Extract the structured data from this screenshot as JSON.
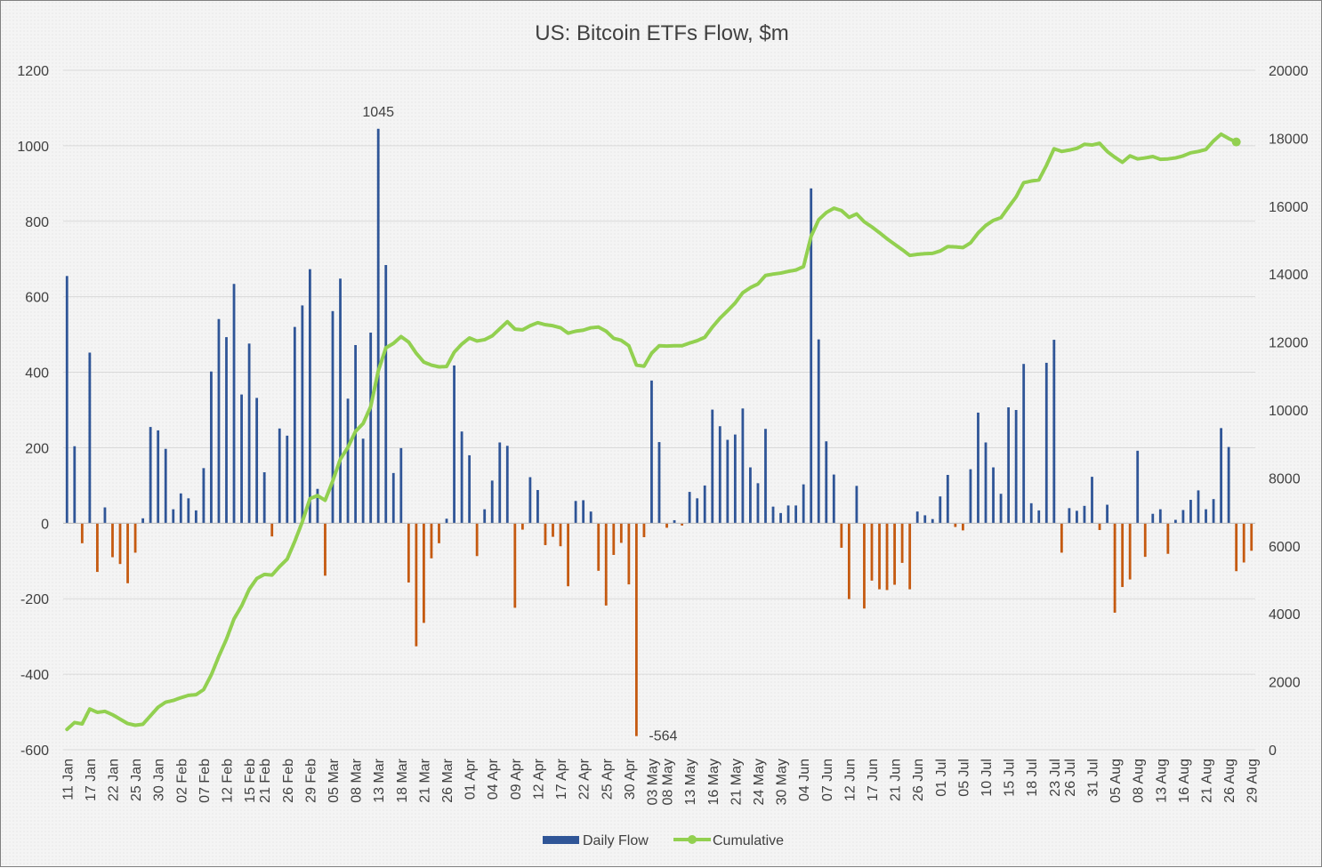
{
  "chart_data": {
    "type": "bar",
    "title": "US: Bitcoin ETFs Flow, $m",
    "xlabel": "",
    "ylabel": "",
    "ylim": [
      -600,
      1200
    ],
    "y2lim": [
      0,
      20000
    ],
    "yticks": [
      -600,
      -400,
      -200,
      0,
      200,
      400,
      600,
      800,
      1000,
      1200
    ],
    "y2ticks": [
      0,
      2000,
      4000,
      6000,
      8000,
      10000,
      12000,
      14000,
      16000,
      18000,
      20000
    ],
    "grid": true,
    "legend_position": "bottom",
    "x_tick_labels": [
      "11 Jan",
      "17 Jan",
      "22 Jan",
      "25 Jan",
      "30 Jan",
      "02 Feb",
      "07 Feb",
      "12 Feb",
      "15 Feb",
      "21 Feb",
      "26 Feb",
      "29 Feb",
      "05 Mar",
      "08 Mar",
      "13 Mar",
      "18 Mar",
      "21 Mar",
      "26 Mar",
      "01 Apr",
      "04 Apr",
      "09 Apr",
      "12 Apr",
      "17 Apr",
      "22 Apr",
      "25 Apr",
      "30 Apr",
      "03 May",
      "08 May",
      "13 May",
      "16 May",
      "21 May",
      "24 May",
      "30 May",
      "04 Jun",
      "07 Jun",
      "12 Jun",
      "17 Jun",
      "21 Jun",
      "26 Jun",
      "01 Jul",
      "05 Jul",
      "10 Jul",
      "15 Jul",
      "18 Jul",
      "23 Jul",
      "26 Jul",
      "31 Jul",
      "05 Aug",
      "08 Aug",
      "13 Aug",
      "16 Aug",
      "21 Aug",
      "26 Aug",
      "29 Aug"
    ],
    "series": [
      {
        "name": "Daily Flow",
        "type": "bar",
        "axis": "left",
        "positive_color": "#2f5597",
        "negative_color": "#c55a11",
        "values": [
          655,
          204,
          -53,
          452,
          -129,
          42,
          -90,
          -108,
          -159,
          -78,
          13,
          255,
          246,
          197,
          37,
          79,
          66,
          34,
          146,
          402,
          541,
          493,
          634,
          341,
          476,
          332,
          135,
          -35,
          251,
          232,
          520,
          577,
          673,
          91,
          -139,
          562,
          648,
          330,
          472,
          224,
          505,
          1045,
          684,
          133,
          199,
          -157,
          -326,
          -264,
          -93,
          -53,
          12,
          418,
          243,
          180,
          -87,
          37,
          113,
          214,
          205,
          -224,
          -17,
          122,
          88,
          -58,
          -36,
          -61,
          -167,
          59,
          61,
          31,
          -126,
          -218,
          -84,
          -52,
          -162,
          -564,
          -37,
          378,
          215,
          -12,
          8,
          -6,
          83,
          66,
          100,
          301,
          257,
          221,
          235,
          304,
          148,
          106,
          250,
          44,
          27,
          47,
          47,
          103,
          887,
          487,
          217,
          129,
          -65,
          -201,
          99,
          -226,
          -152,
          -175,
          -177,
          -163,
          -105,
          -175,
          31,
          21,
          11,
          71,
          128,
          -10,
          -19,
          143,
          293,
          214,
          148,
          78,
          307,
          300,
          422,
          53,
          34,
          425,
          486,
          -78,
          40,
          33,
          46,
          123,
          -18,
          49,
          -237,
          -169,
          -149,
          192,
          -89,
          25,
          37,
          -81,
          9,
          35,
          62,
          87,
          37,
          64,
          252,
          202,
          -127,
          -104,
          -73
        ]
      },
      {
        "name": "Cumulative",
        "type": "line",
        "axis": "right",
        "color": "#92d050",
        "values": [
          600,
          800,
          760,
          1200,
          1100,
          1130,
          1030,
          900,
          770,
          720,
          750,
          1000,
          1250,
          1400,
          1450,
          1530,
          1600,
          1620,
          1770,
          2200,
          2750,
          3250,
          3850,
          4230,
          4720,
          5040,
          5160,
          5140,
          5390,
          5610,
          6130,
          6710,
          7390,
          7480,
          7340,
          7910,
          8550,
          8900,
          9370,
          9600,
          10100,
          11150,
          11830,
          11960,
          12160,
          12000,
          11670,
          11410,
          11320,
          11270,
          11280,
          11700,
          11940,
          12120,
          12030,
          12070,
          12180,
          12390,
          12600,
          12380,
          12360,
          12480,
          12570,
          12510,
          12480,
          12420,
          12260,
          12320,
          12350,
          12420,
          12440,
          12320,
          12110,
          12050,
          11890,
          11320,
          11290,
          11670,
          11890,
          11880,
          11890,
          11890,
          11970,
          12040,
          12140,
          12440,
          12700,
          12920,
          13150,
          13450,
          13600,
          13710,
          13960,
          14000,
          14030,
          14080,
          14120,
          14220,
          15110,
          15600,
          15810,
          15940,
          15870,
          15670,
          15770,
          15540,
          15390,
          15220,
          15040,
          14880,
          14720,
          14550,
          14580,
          14600,
          14610,
          14680,
          14810,
          14800,
          14780,
          14920,
          15210,
          15430,
          15580,
          15660,
          15970,
          16270,
          16690,
          16740,
          16770,
          17200,
          17690,
          17610,
          17650,
          17700,
          17820,
          17800,
          17850,
          17610,
          17440,
          17290,
          17480,
          17390,
          17420,
          17460,
          17380,
          17390,
          17420,
          17480,
          17570,
          17610,
          17670,
          17920,
          18120,
          17990,
          17890
        ]
      }
    ],
    "annotations": [
      {
        "text": "1045"
      },
      {
        "text": "-564"
      }
    ]
  }
}
